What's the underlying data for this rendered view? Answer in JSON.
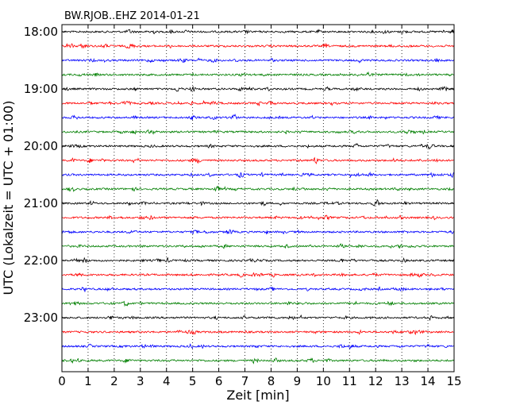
{
  "chart_data": {
    "type": "line",
    "subtype": "dayplot",
    "title": "BW.RJOB..EHZ 2014-01-21",
    "xlabel": "Zeit  [min]",
    "ylabel": "UTC (Lokalzeit = UTC + 01:00)",
    "xlim": [
      0,
      15
    ],
    "x_ticks": [
      "0",
      "1",
      "2",
      "3",
      "4",
      "5",
      "6",
      "7",
      "8",
      "9",
      "10",
      "11",
      "12",
      "13",
      "14",
      "15"
    ],
    "y_tick_labels": [
      "18:00",
      "19:00",
      "20:00",
      "21:00",
      "22:00",
      "23:00"
    ],
    "vertical_grid": "dotted, every 1 min",
    "trace_interval_minutes": 15,
    "trace_colors": [
      "#000000",
      "#ff0000",
      "#0000ff",
      "#007f00"
    ],
    "traces": [
      {
        "start": "18:00",
        "color": "#000000"
      },
      {
        "start": "18:15",
        "color": "#ff0000"
      },
      {
        "start": "18:30",
        "color": "#0000ff"
      },
      {
        "start": "18:45",
        "color": "#007f00"
      },
      {
        "start": "19:00",
        "color": "#000000"
      },
      {
        "start": "19:15",
        "color": "#ff0000"
      },
      {
        "start": "19:30",
        "color": "#0000ff"
      },
      {
        "start": "19:45",
        "color": "#007f00"
      },
      {
        "start": "20:00",
        "color": "#000000"
      },
      {
        "start": "20:15",
        "color": "#ff0000"
      },
      {
        "start": "20:30",
        "color": "#0000ff"
      },
      {
        "start": "20:45",
        "color": "#007f00"
      },
      {
        "start": "21:00",
        "color": "#000000"
      },
      {
        "start": "21:15",
        "color": "#ff0000"
      },
      {
        "start": "21:30",
        "color": "#0000ff"
      },
      {
        "start": "21:45",
        "color": "#007f00"
      },
      {
        "start": "22:00",
        "color": "#000000"
      },
      {
        "start": "22:15",
        "color": "#ff0000"
      },
      {
        "start": "22:30",
        "color": "#0000ff"
      },
      {
        "start": "22:45",
        "color": "#007f00"
      },
      {
        "start": "23:00",
        "color": "#000000"
      },
      {
        "start": "23:15",
        "color": "#ff0000"
      },
      {
        "start": "23:30",
        "color": "#0000ff"
      },
      {
        "start": "23:45",
        "color": "#007f00"
      }
    ]
  }
}
